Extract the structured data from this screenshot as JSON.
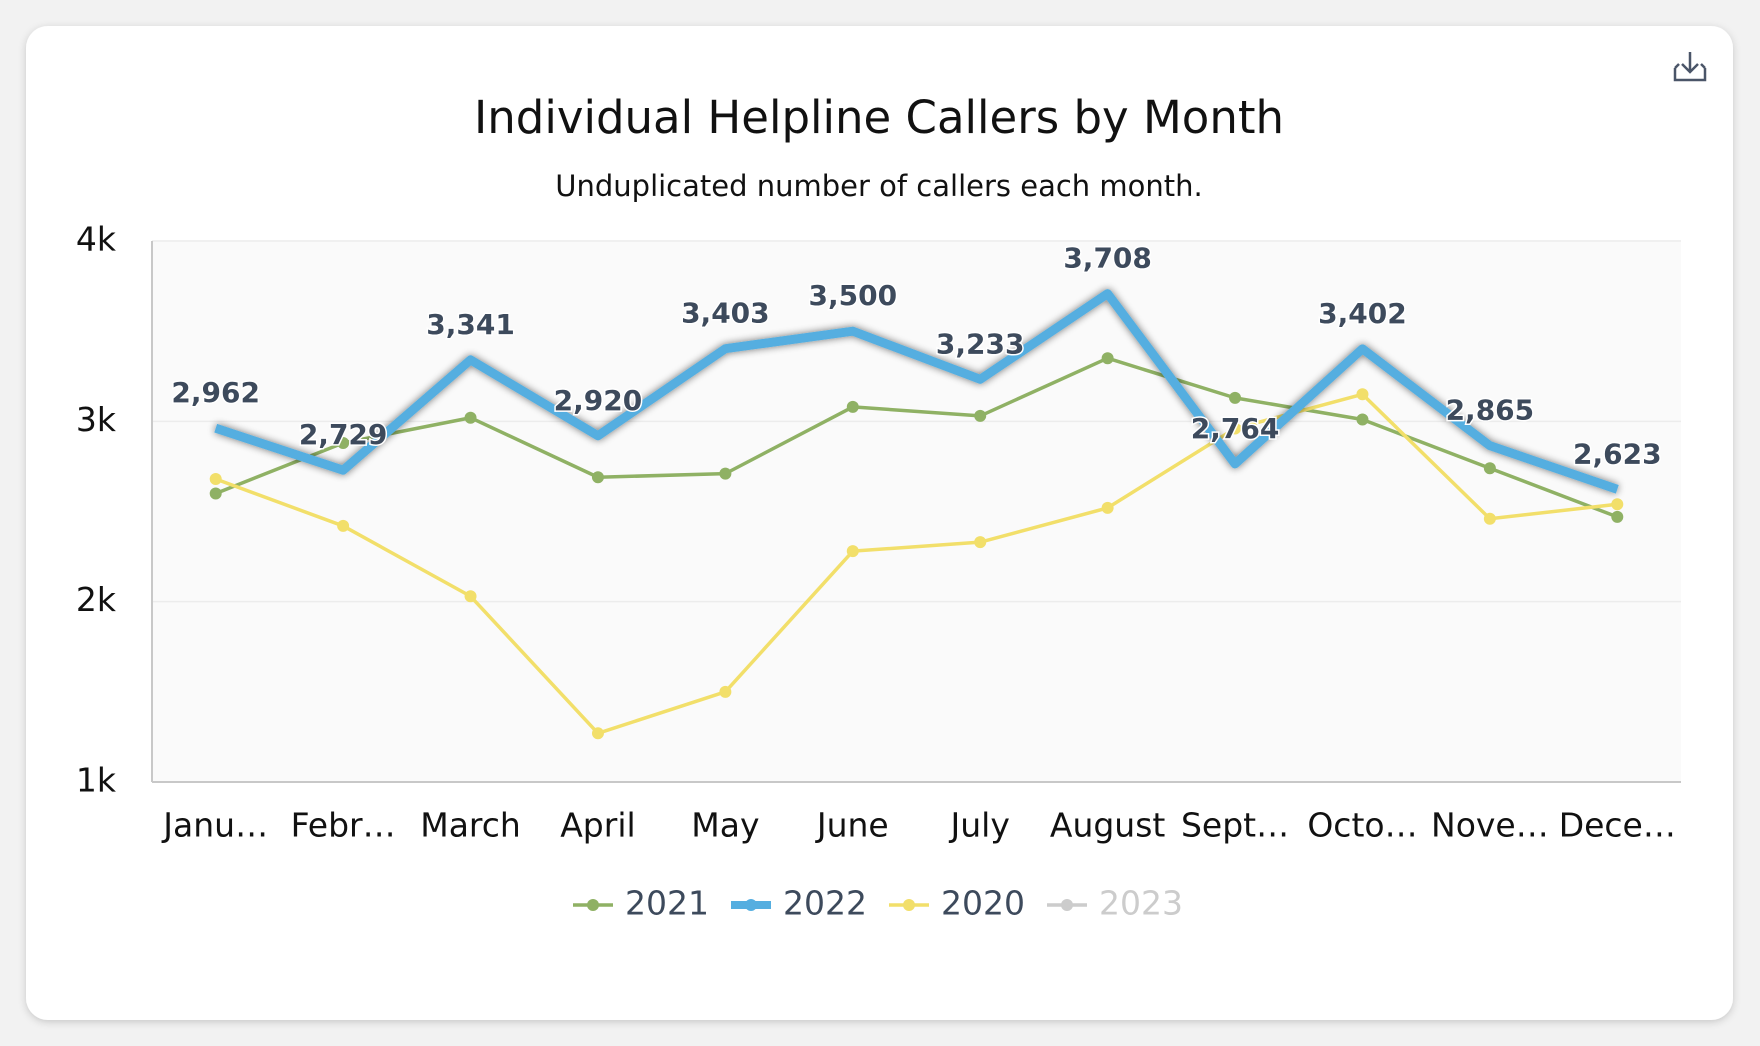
{
  "chart_data": {
    "type": "line",
    "title": "Individual Helpline Callers by Month",
    "subtitle": "Unduplicated number of callers each month.",
    "categories": [
      "Janu…",
      "Febr…",
      "March",
      "April",
      "May",
      "June",
      "July",
      "August",
      "Sept…",
      "Octo…",
      "Nove…",
      "Dece…"
    ],
    "ylim": [
      1000,
      4000
    ],
    "yticks": [
      {
        "value": 1000,
        "label": "1k"
      },
      {
        "value": 2000,
        "label": "2k"
      },
      {
        "value": 3000,
        "label": "3k"
      },
      {
        "value": 4000,
        "label": "4k"
      }
    ],
    "grid": true,
    "legend": "bottom",
    "series": [
      {
        "name": "2021",
        "color": "#8fb164",
        "values": [
          2600,
          2880,
          3020,
          2690,
          2710,
          3080,
          3030,
          3350,
          3130,
          3010,
          2740,
          2470
        ]
      },
      {
        "name": "2022",
        "color": "#55aee0",
        "emphasis": true,
        "values": [
          2962,
          2729,
          3341,
          2920,
          3403,
          3500,
          3233,
          3708,
          2764,
          3402,
          2865,
          2623
        ],
        "value_labels": [
          "2,962",
          "2,729",
          "3,341",
          "2,920",
          "3,403",
          "3,500",
          "3,233",
          "3,708",
          "2,764",
          "3,402",
          "2,865",
          "2,623"
        ]
      },
      {
        "name": "2020",
        "color": "#f2df6a",
        "values": [
          2680,
          2420,
          2030,
          1270,
          1500,
          2280,
          2330,
          2520,
          2960,
          3150,
          2460,
          2540
        ]
      },
      {
        "name": "2023",
        "color": "#cccccc",
        "visible": false,
        "values": [
          null,
          null,
          null,
          null,
          null,
          null,
          null,
          null,
          null,
          null,
          null,
          null
        ]
      }
    ]
  }
}
